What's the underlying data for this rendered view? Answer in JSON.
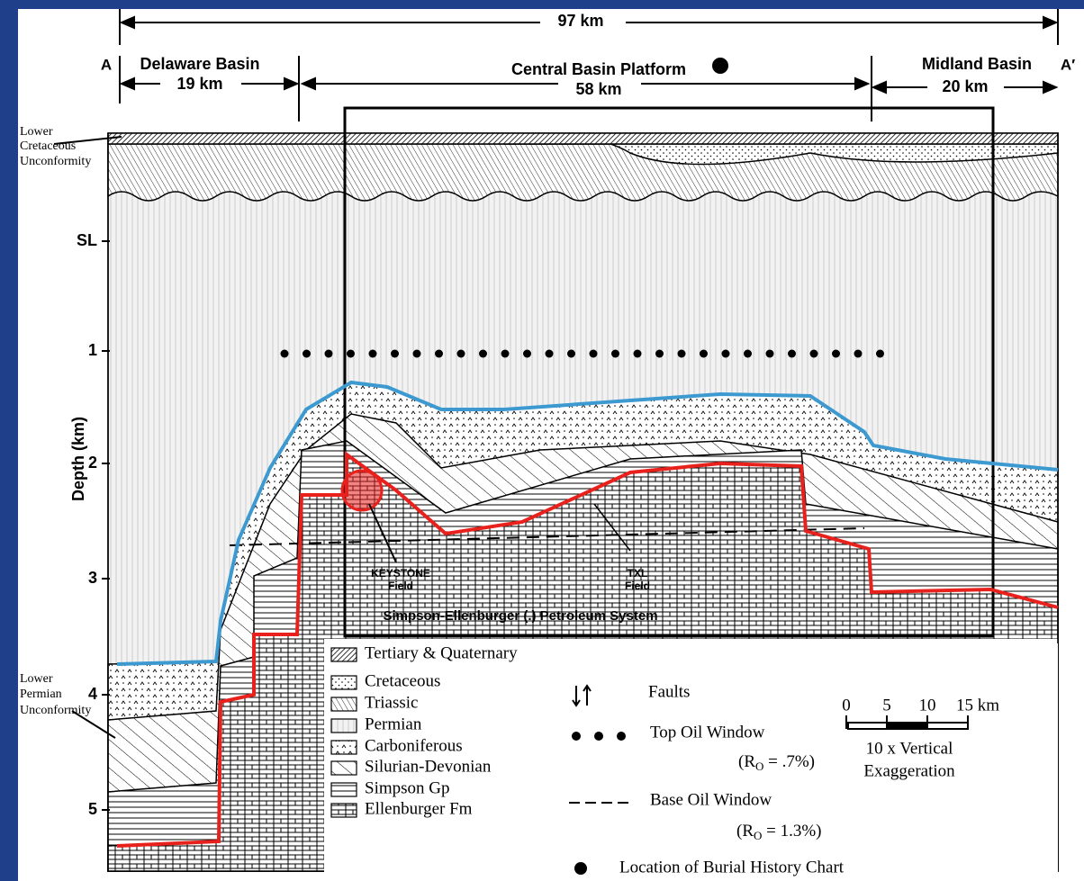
{
  "header": {
    "total": "97 km",
    "left_end": "A",
    "right_end": "A′",
    "sections": [
      {
        "name": "Delaware Basin",
        "width": "19 km"
      },
      {
        "name": "Central Basin Platform",
        "width": "58 km"
      },
      {
        "name": "Midland Basin",
        "width": "20 km"
      }
    ]
  },
  "unconformities": {
    "upper": [
      "Lower",
      "Cretaceous",
      "Unconformity"
    ],
    "lower": [
      "Lower",
      "Permian",
      "Unconformity"
    ]
  },
  "axis": {
    "label": "Depth (km)",
    "ticks": [
      "SL",
      "1",
      "2",
      "3",
      "4",
      "5"
    ]
  },
  "fields": [
    {
      "name": "KEYSTONE",
      "sub": "Field"
    },
    {
      "name": "TXL",
      "sub": "Field"
    }
  ],
  "petroleum_system": "Simpson-Ellenburger (.) Petroleum System",
  "legend": [
    "Tertiary & Quaternary",
    "Cretaceous",
    "Triassic",
    "Permian",
    "Carboniferous",
    "Silurian-Devonian",
    "Simpson Gp",
    "Ellenburger Fm"
  ],
  "symbols": {
    "faults": "Faults",
    "top_oil": "Top Oil Window",
    "top_oil_ro": {
      "pre": "(R",
      "sub": "O",
      "post": " = .7%)"
    },
    "base_oil": "Base Oil Window",
    "base_oil_ro": {
      "pre": "(R",
      "sub": "O",
      "post": " = 1.3%)"
    },
    "burial": "Location of Burial History Chart"
  },
  "scale": {
    "ticks": [
      "0",
      "5",
      "10",
      "15 km"
    ],
    "note": [
      "10 x Vertical",
      "Exaggeration"
    ]
  }
}
